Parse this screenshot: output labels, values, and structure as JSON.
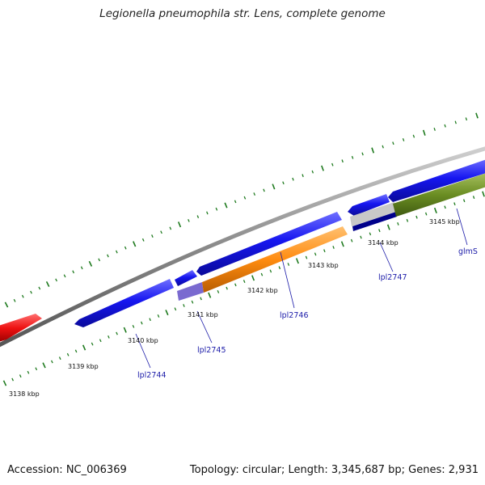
{
  "title": "Legionella pneumophila str. Lens, complete genome",
  "footer": {
    "accession": "Accession: NC_006369",
    "stats": "Topology: circular; Length: 3,345,687 bp; Genes: 2,931"
  },
  "ticks": [
    {
      "kbp": 3138,
      "label": "3138 kbp"
    },
    {
      "kbp": 3139,
      "label": "3139 kbp"
    },
    {
      "kbp": 3140,
      "label": "3140 kbp"
    },
    {
      "kbp": 3141,
      "label": "3141 kbp"
    },
    {
      "kbp": 3142,
      "label": "3142 kbp"
    },
    {
      "kbp": 3143,
      "label": "3143 kbp"
    },
    {
      "kbp": 3144,
      "label": "3144 kbp"
    },
    {
      "kbp": 3145,
      "label": "3145 kbp"
    }
  ],
  "genes": [
    {
      "label": "lpl2744"
    },
    {
      "label": "lpl2745"
    },
    {
      "label": "lpl2746"
    },
    {
      "label": "lpl2747"
    },
    {
      "label": "glmS"
    }
  ],
  "colors": {
    "backbone": "#8a8a8a",
    "cds": "#1414e6",
    "orange": "#ff8c10",
    "olive": "#6b8e23",
    "red": "#ee1111",
    "lavender": "#7a6ad0",
    "navy": "#00008b",
    "silver": "#c8c8c8",
    "tick": "#1e7a1e",
    "label": "#1a1aa8"
  }
}
